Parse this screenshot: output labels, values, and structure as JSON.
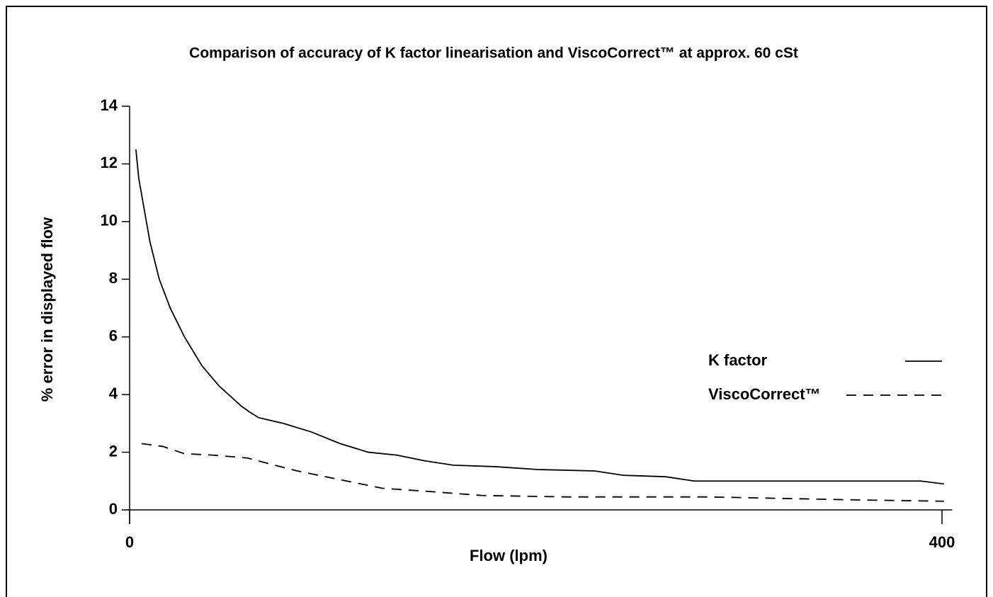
{
  "chart_data": {
    "type": "line",
    "title": "Comparison of accuracy of K factor linearisation and ViscoCorrect™ at approx. 60 cSt",
    "xlabel": "Flow (lpm)",
    "ylabel": "% error in displayed flow",
    "xlim": [
      0,
      405
    ],
    "xticks": [
      0,
      400
    ],
    "ylim": [
      0,
      14
    ],
    "yticks": [
      0,
      2,
      4,
      6,
      8,
      10,
      12,
      14
    ],
    "legend": "right",
    "grid": false,
    "series": [
      {
        "name": "K factor",
        "color": "#000000",
        "style": "solid",
        "x": [
          3.1,
          4.5,
          7,
          10,
          14.6,
          20,
          27,
          35.6,
          44,
          55,
          59,
          63.5,
          75.7,
          89.6,
          103.6,
          117.5,
          131.5,
          145.4,
          159.4,
          180,
          201,
          229,
          243,
          264,
          278,
          354.7,
          389.5,
          401
        ],
        "values": [
          12.5,
          11.5,
          10.5,
          9.3,
          8,
          7,
          6,
          5,
          4.3,
          3.6,
          3.4,
          3.2,
          3.0,
          2.7,
          2.3,
          2.0,
          1.9,
          1.7,
          1.55,
          1.5,
          1.4,
          1.35,
          1.2,
          1.15,
          1.0,
          1.0,
          1.0,
          0.9
        ]
      },
      {
        "name": "ViscoCorrect™",
        "color": "#000000",
        "style": "dashed",
        "x": [
          5.9,
          16.4,
          26.9,
          40.8,
          58,
          68.7,
          82.6,
          100,
          114,
          124.5,
          145.4,
          173.3,
          215,
          285,
          354.7,
          401
        ],
        "values": [
          2.3,
          2.2,
          1.95,
          1.9,
          1.8,
          1.6,
          1.35,
          1.1,
          0.9,
          0.75,
          0.65,
          0.5,
          0.45,
          0.45,
          0.35,
          0.3
        ]
      }
    ]
  }
}
